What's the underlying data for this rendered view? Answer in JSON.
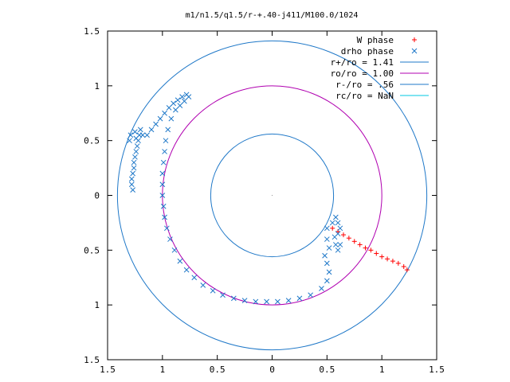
{
  "chart_data": {
    "type": "scatter",
    "title": "m1/n1.5/q1.5/r-+.40-j411/M100.0/1024",
    "xlabel": "",
    "ylabel": "",
    "xlim": [
      -1.5,
      1.5
    ],
    "ylim": [
      -1.5,
      1.5
    ],
    "x_ticks": [
      -1.5,
      -1,
      -0.5,
      0,
      0.5,
      1,
      1.5
    ],
    "y_ticks": [
      -1.5,
      -1,
      -0.5,
      0,
      0.5,
      1,
      1.5
    ],
    "x_tick_labels": [
      "1.5",
      "1",
      "0.5",
      "0",
      "0.5",
      "1",
      "1.5"
    ],
    "y_tick_labels": [
      "1.5",
      "1",
      "0.5",
      "0",
      "0.5",
      "1",
      "1.5"
    ],
    "grid": false,
    "legend_position": "top-right",
    "circles": [
      {
        "label": "r+/ro = 1.41",
        "radius": 1.41,
        "color": "#1f78c8"
      },
      {
        "label": "ro/ro = 1.00",
        "radius": 1.0,
        "color": "#b000b0"
      },
      {
        "label": "r-/ro = .56",
        "radius": 0.56,
        "color": "#1f78c8"
      },
      {
        "label": "rc/ro = NaN",
        "radius": null,
        "color": "#00c8e0"
      }
    ],
    "series": [
      {
        "name": "W phase",
        "marker": "+",
        "color": "#ff0000",
        "points": [
          [
            0.55,
            -0.3
          ],
          [
            0.6,
            -0.33
          ],
          [
            0.65,
            -0.36
          ],
          [
            0.7,
            -0.39
          ],
          [
            0.75,
            -0.42
          ],
          [
            0.8,
            -0.45
          ],
          [
            0.85,
            -0.48
          ],
          [
            0.9,
            -0.5
          ],
          [
            0.95,
            -0.53
          ],
          [
            1.0,
            -0.56
          ],
          [
            1.05,
            -0.58
          ],
          [
            1.1,
            -0.6
          ],
          [
            1.15,
            -0.62
          ],
          [
            1.2,
            -0.65
          ],
          [
            1.23,
            -0.68
          ]
        ]
      },
      {
        "name": "drho phase",
        "marker": "x",
        "color": "#1f78c8",
        "points": [
          [
            -1.27,
            0.05
          ],
          [
            -1.28,
            0.1
          ],
          [
            -1.28,
            0.15
          ],
          [
            -1.27,
            0.2
          ],
          [
            -1.26,
            0.25
          ],
          [
            -1.26,
            0.3
          ],
          [
            -1.25,
            0.35
          ],
          [
            -1.24,
            0.4
          ],
          [
            -1.23,
            0.45
          ],
          [
            -1.22,
            0.5
          ],
          [
            -1.21,
            0.55
          ],
          [
            -1.2,
            0.6
          ],
          [
            -1.18,
            0.55
          ],
          [
            -1.14,
            0.55
          ],
          [
            -1.1,
            0.6
          ],
          [
            -1.06,
            0.65
          ],
          [
            -1.02,
            0.7
          ],
          [
            -0.98,
            0.75
          ],
          [
            -0.94,
            0.8
          ],
          [
            -0.9,
            0.84
          ],
          [
            -0.86,
            0.87
          ],
          [
            -0.82,
            0.9
          ],
          [
            -0.78,
            0.92
          ],
          [
            -1.3,
            0.5
          ],
          [
            -1.29,
            0.55
          ],
          [
            -1.25,
            0.58
          ],
          [
            -1.24,
            0.52
          ],
          [
            -0.76,
            0.9
          ],
          [
            -0.8,
            0.86
          ],
          [
            -0.84,
            0.82
          ],
          [
            -0.88,
            0.78
          ],
          [
            -0.92,
            0.7
          ],
          [
            -0.95,
            0.6
          ],
          [
            -0.97,
            0.5
          ],
          [
            -0.98,
            0.4
          ],
          [
            -0.99,
            0.3
          ],
          [
            -1.0,
            0.2
          ],
          [
            -1.0,
            0.1
          ],
          [
            -1.0,
            0.0
          ],
          [
            -0.99,
            -0.1
          ],
          [
            -0.98,
            -0.2
          ],
          [
            -0.96,
            -0.3
          ],
          [
            -0.93,
            -0.4
          ],
          [
            -0.89,
            -0.5
          ],
          [
            -0.84,
            -0.6
          ],
          [
            -0.78,
            -0.68
          ],
          [
            -0.71,
            -0.75
          ],
          [
            -0.63,
            -0.82
          ],
          [
            -0.54,
            -0.87
          ],
          [
            -0.45,
            -0.91
          ],
          [
            -0.35,
            -0.94
          ],
          [
            -0.25,
            -0.96
          ],
          [
            -0.15,
            -0.97
          ],
          [
            -0.05,
            -0.97
          ],
          [
            0.05,
            -0.97
          ],
          [
            0.15,
            -0.96
          ],
          [
            0.25,
            -0.94
          ],
          [
            0.35,
            -0.91
          ],
          [
            0.45,
            -0.85
          ],
          [
            0.5,
            -0.78
          ],
          [
            0.52,
            -0.7
          ],
          [
            0.5,
            -0.62
          ],
          [
            0.48,
            -0.55
          ],
          [
            0.52,
            -0.48
          ],
          [
            0.58,
            -0.45
          ],
          [
            0.6,
            -0.5
          ],
          [
            0.62,
            -0.45
          ],
          [
            0.5,
            -0.4
          ],
          [
            0.5,
            -0.3
          ],
          [
            0.55,
            -0.25
          ],
          [
            0.58,
            -0.2
          ],
          [
            0.6,
            -0.25
          ],
          [
            0.62,
            -0.3
          ],
          [
            0.6,
            -0.35
          ],
          [
            0.57,
            -0.38
          ]
        ]
      }
    ]
  }
}
